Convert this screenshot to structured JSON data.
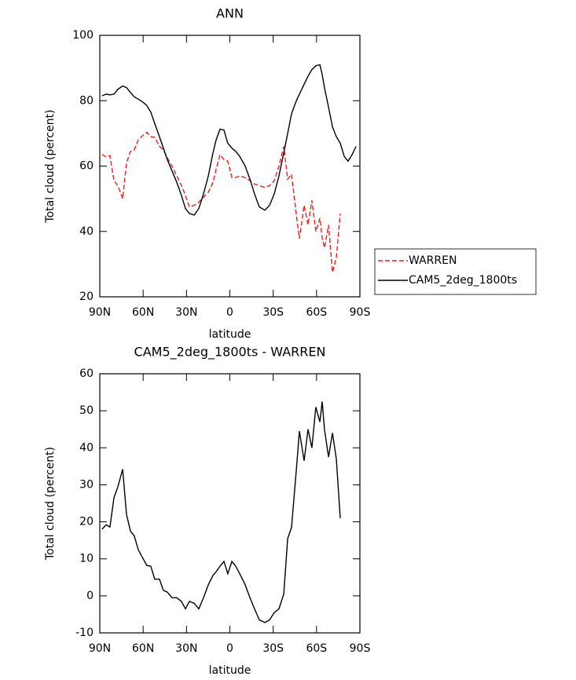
{
  "chart_data": [
    {
      "type": "line",
      "title": "ANN",
      "xlabel": "latitude",
      "ylabel": "Total cloud (percent)",
      "x": [
        88.4,
        85.6,
        83,
        80.2,
        77.5,
        74.2,
        71.5,
        68.8,
        66.1,
        63.4,
        60,
        57.4,
        54.7,
        52,
        48.7,
        46,
        43.3,
        40,
        36.7,
        33.5,
        30.7,
        28,
        24.7,
        21.5,
        18.2,
        14.9,
        11.7,
        9.5,
        6.8,
        4.1,
        1.4,
        -1.4,
        -4.1,
        -6.8,
        -10.6,
        -13.9,
        -17.1,
        -20.4,
        -24.2,
        -27.5,
        -30.7,
        -34,
        -37.3,
        -40,
        -42.7,
        -46,
        -48.1,
        -51.4,
        -54.1,
        -56.8,
        -59.5,
        -62.3,
        -63.9,
        -65.5,
        -68.3,
        -71,
        -73.7,
        -76.4,
        -79.1,
        -81.8,
        -84.6,
        -87.3
      ],
      "xlim": [
        90,
        -90
      ],
      "xticks": [
        {
          "value": 90,
          "label": "90N"
        },
        {
          "value": 60,
          "label": "60N"
        },
        {
          "value": 30,
          "label": "30N"
        },
        0,
        {
          "value": -30,
          "label": "30S"
        },
        {
          "value": -60,
          "label": "60S"
        },
        {
          "value": -90,
          "label": "90S"
        }
      ],
      "ylim": [
        20,
        100
      ],
      "yticks": [
        20,
        40,
        60,
        80,
        100
      ],
      "legend": "right",
      "series": [
        {
          "name": "WARREN",
          "color": "#e8201e",
          "dash": true,
          "values": [
            63.5,
            62.8,
            63.2,
            55.5,
            54,
            50,
            61,
            64.5,
            65,
            68,
            69.5,
            70.3,
            69,
            68.8,
            66,
            65,
            62.5,
            60,
            57,
            54,
            51,
            47.5,
            48,
            49,
            50.5,
            52,
            55,
            59,
            63.5,
            62,
            61.5,
            56.5,
            56.5,
            57,
            56.5,
            55.5,
            54.5,
            54,
            53.5,
            54,
            55.5,
            60,
            66,
            56,
            57.5,
            45,
            37.8,
            48,
            42,
            49.5,
            40,
            44,
            38,
            35,
            42,
            27.5,
            32,
            45.5,
            null,
            null,
            null,
            null
          ]
        },
        {
          "name": "CAM5_2deg_1800ts",
          "color": "#000000",
          "dash": false,
          "values": [
            81.5,
            82,
            81.8,
            82,
            83.5,
            84.5,
            84,
            82.5,
            81.2,
            80.5,
            79.5,
            78.5,
            76.5,
            73,
            69,
            65.5,
            62,
            58.5,
            55,
            51,
            47,
            45.5,
            45,
            47,
            51.5,
            57,
            64,
            68,
            71.3,
            71,
            67,
            65.5,
            64.5,
            63,
            60,
            56,
            51.5,
            47.5,
            46.5,
            48,
            51.5,
            57,
            64,
            70,
            76,
            80,
            82,
            85,
            87.5,
            89.5,
            90.7,
            91,
            88,
            84,
            78,
            72,
            69,
            67,
            63,
            61.5,
            63.5,
            66
          ]
        }
      ]
    },
    {
      "type": "line",
      "title": "CAM5_2deg_1800ts - WARREN",
      "xlabel": "latitude",
      "ylabel": "Total cloud (percent)",
      "x": [
        88.4,
        85.6,
        83,
        80.2,
        77.5,
        74.2,
        71.5,
        68.8,
        66.1,
        63.4,
        60,
        57.4,
        54.7,
        52,
        48.7,
        46,
        43.3,
        40,
        36.7,
        33.5,
        30.7,
        28,
        24.7,
        21.5,
        18.2,
        14.9,
        11.7,
        9.5,
        6.8,
        4.1,
        1.4,
        -1.4,
        -4.1,
        -6.8,
        -10.6,
        -13.9,
        -17.1,
        -20.4,
        -24.2,
        -27.5,
        -30.7,
        -34,
        -37.3,
        -40,
        -42.7,
        -46,
        -48.1,
        -51.4,
        -54.1,
        -56.8,
        -59.5,
        -62.3,
        -63.9,
        -65.5,
        -68.3,
        -71,
        -73.7,
        -76.4
      ],
      "xlim": [
        90,
        -90
      ],
      "xticks": [
        {
          "value": 90,
          "label": "90N"
        },
        {
          "value": 60,
          "label": "60N"
        },
        {
          "value": 30,
          "label": "30N"
        },
        0,
        {
          "value": -30,
          "label": "30S"
        },
        {
          "value": -60,
          "label": "60S"
        },
        {
          "value": -90,
          "label": "90S"
        }
      ],
      "ylim": [
        -10,
        60
      ],
      "yticks": [
        -10,
        0,
        10,
        20,
        30,
        40,
        50,
        60
      ],
      "series": [
        {
          "color": "#000000",
          "dash": false,
          "values": [
            18,
            19.2,
            18.6,
            26.5,
            29.5,
            34.2,
            22,
            17.5,
            16.2,
            12.5,
            10,
            8.2,
            8,
            4.5,
            4.5,
            1.5,
            1,
            -0.5,
            -0.5,
            -1.5,
            -3.5,
            -1.5,
            -2,
            -3.5,
            -0.5,
            3,
            5.5,
            6.5,
            8,
            9.3,
            6,
            9.3,
            8,
            6,
            3,
            -0.5,
            -3.5,
            -6.5,
            -7.2,
            -6.5,
            -4.5,
            -3.5,
            0.5,
            15.5,
            18.5,
            34,
            44.5,
            36.5,
            45,
            40,
            51,
            47,
            52.5,
            45,
            37.5,
            44,
            37,
            21
          ]
        }
      ]
    }
  ]
}
